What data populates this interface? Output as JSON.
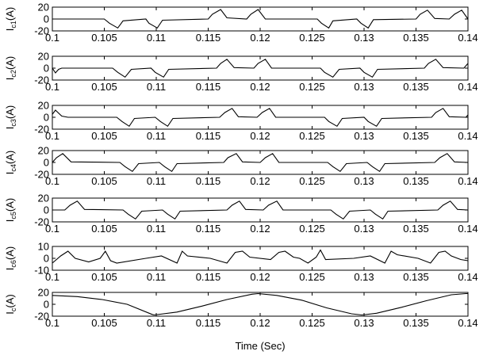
{
  "chart_data": [
    {
      "type": "line",
      "ylabel": {
        "main": "I",
        "sub": "c1",
        "unit": "(A)"
      },
      "ylim": [
        -20,
        20
      ],
      "yticks": [
        "20",
        "0",
        "-20"
      ],
      "xlim": [
        0.1,
        0.14
      ],
      "xticks": [
        "0.1",
        "0.105",
        "0.11",
        "0.115",
        "0.12",
        "0.125",
        "0.13",
        "0.135",
        "0.14"
      ],
      "x": [
        0.1,
        0.105,
        0.1055,
        0.1063,
        0.1068,
        0.109,
        0.1093,
        0.1101,
        0.1106,
        0.115,
        0.1154,
        0.1162,
        0.1168,
        0.1187,
        0.1191,
        0.1198,
        0.1205,
        0.1255,
        0.1259,
        0.1266,
        0.127,
        0.1293,
        0.1297,
        0.1304,
        0.1309,
        0.135,
        0.1354,
        0.1361,
        0.1368,
        0.1382,
        0.1387,
        0.1394,
        0.14
      ],
      "values": [
        0,
        0,
        -7,
        -15,
        -3,
        0,
        -7,
        -15,
        -2,
        0,
        8,
        16,
        2,
        0,
        8,
        16,
        0,
        0,
        -7,
        -15,
        -3,
        0,
        -7,
        -15,
        -1,
        0,
        8,
        15,
        1,
        0,
        8,
        15,
        0
      ]
    },
    {
      "type": "line",
      "ylabel": {
        "main": "I",
        "sub": "c2",
        "unit": "(A)"
      },
      "ylim": [
        -20,
        20
      ],
      "yticks": [
        "20",
        "0",
        "-20"
      ],
      "xlim": [
        0.1,
        0.14
      ],
      "xticks": [
        "0.1",
        "0.105",
        "0.11",
        "0.115",
        "0.12",
        "0.125",
        "0.13",
        "0.135",
        "0.14"
      ],
      "x": [
        0.1,
        0.1003,
        0.1006,
        0.1009,
        0.1058,
        0.1063,
        0.107,
        0.1076,
        0.1095,
        0.1099,
        0.1107,
        0.1112,
        0.1158,
        0.1162,
        0.1168,
        0.1175,
        0.1194,
        0.1198,
        0.1205,
        0.1211,
        0.1258,
        0.1262,
        0.127,
        0.1276,
        0.1296,
        0.13,
        0.1308,
        0.1313,
        0.1358,
        0.1362,
        0.1369,
        0.1376,
        0.1396,
        0.14
      ],
      "values": [
        0,
        -8,
        -2,
        0,
        0,
        -7,
        -15,
        -2,
        0,
        -7,
        -15,
        -2,
        0,
        8,
        15,
        1,
        0,
        8,
        15,
        0,
        0,
        -7,
        -15,
        -2,
        0,
        -7,
        -15,
        -2,
        0,
        8,
        15,
        1,
        0,
        8
      ]
    },
    {
      "type": "line",
      "ylabel": {
        "main": "I",
        "sub": "c3",
        "unit": "(A)"
      },
      "ylim": [
        -20,
        20
      ],
      "yticks": [
        "20",
        "0",
        "-20"
      ],
      "xlim": [
        0.1,
        0.14
      ],
      "xticks": [
        "0.1",
        "0.105",
        "0.11",
        "0.115",
        "0.12",
        "0.125",
        "0.13",
        "0.135",
        "0.14"
      ],
      "x": [
        0.1,
        0.1003,
        0.1009,
        0.1015,
        0.1062,
        0.1067,
        0.1074,
        0.1079,
        0.1099,
        0.1104,
        0.1111,
        0.1116,
        0.1161,
        0.1166,
        0.1173,
        0.1179,
        0.1197,
        0.1202,
        0.1209,
        0.1215,
        0.1262,
        0.1266,
        0.1274,
        0.1279,
        0.13,
        0.1304,
        0.1312,
        0.1317,
        0.1365,
        0.1369,
        0.1376,
        0.1382,
        0.1398,
        0.14
      ],
      "values": [
        5,
        12,
        2,
        0,
        0,
        -7,
        -15,
        -2,
        0,
        -7,
        -15,
        -2,
        0,
        8,
        15,
        1,
        0,
        8,
        15,
        0,
        0,
        -7,
        -15,
        -2,
        0,
        -7,
        -15,
        -2,
        0,
        8,
        15,
        1,
        0,
        4
      ]
    },
    {
      "type": "line",
      "ylabel": {
        "main": "I",
        "sub": "c4",
        "unit": "(A)"
      },
      "ylim": [
        -20,
        20
      ],
      "yticks": [
        "20",
        "0",
        "-20"
      ],
      "xlim": [
        0.1,
        0.14
      ],
      "xticks": [
        "0.1",
        "0.105",
        "0.11",
        "0.115",
        "0.12",
        "0.125",
        "0.13",
        "0.135",
        "0.14"
      ],
      "x": [
        0.1,
        0.1004,
        0.101,
        0.1018,
        0.1065,
        0.107,
        0.1077,
        0.1083,
        0.1103,
        0.1108,
        0.1115,
        0.112,
        0.1165,
        0.1169,
        0.1177,
        0.1183,
        0.12,
        0.1205,
        0.1212,
        0.1218,
        0.1265,
        0.127,
        0.1277,
        0.1283,
        0.1303,
        0.1308,
        0.1315,
        0.132,
        0.1368,
        0.1373,
        0.138,
        0.1387,
        0.14
      ],
      "values": [
        0,
        8,
        15,
        1,
        0,
        -7,
        -15,
        -2,
        0,
        -7,
        -15,
        -2,
        0,
        8,
        15,
        1,
        0,
        8,
        15,
        0,
        0,
        -7,
        -15,
        -2,
        0,
        -7,
        -15,
        -2,
        0,
        8,
        15,
        1,
        0
      ]
    },
    {
      "type": "line",
      "ylabel": {
        "main": "I",
        "sub": "c5",
        "unit": "(A)"
      },
      "ylim": [
        -20,
        20
      ],
      "yticks": [
        "20",
        "0",
        "-20"
      ],
      "xlim": [
        0.1,
        0.14
      ],
      "xticks": [
        "0.1",
        "0.105",
        "0.11",
        "0.115",
        "0.12",
        "0.125",
        "0.13",
        "0.135",
        "0.14"
      ],
      "x": [
        0.1,
        0.1012,
        0.1017,
        0.1024,
        0.1031,
        0.1068,
        0.1073,
        0.108,
        0.1086,
        0.1106,
        0.1111,
        0.1118,
        0.1123,
        0.1168,
        0.1173,
        0.118,
        0.1186,
        0.1203,
        0.1208,
        0.1216,
        0.1222,
        0.1268,
        0.1273,
        0.128,
        0.1286,
        0.1306,
        0.1311,
        0.1318,
        0.1323,
        0.1371,
        0.1376,
        0.1383,
        0.139,
        0.14
      ],
      "values": [
        0,
        0,
        8,
        15,
        1,
        0,
        -7,
        -15,
        -2,
        0,
        -7,
        -15,
        -2,
        0,
        8,
        15,
        1,
        0,
        8,
        15,
        0,
        0,
        -7,
        -15,
        -2,
        0,
        -7,
        -15,
        -2,
        0,
        8,
        15,
        1,
        0
      ]
    },
    {
      "type": "line",
      "ylabel": {
        "main": "I",
        "sub": "c6",
        "unit": "(A)"
      },
      "ylim": [
        -10,
        10
      ],
      "yticks": [
        "10",
        "0",
        "-10"
      ],
      "xlim": [
        0.1,
        0.14
      ],
      "xticks": [
        "0.1",
        "0.105",
        "0.11",
        "0.115",
        "0.12",
        "0.125",
        "0.13",
        "0.135",
        "0.14"
      ],
      "x": [
        0.1,
        0.1008,
        0.1015,
        0.1022,
        0.1035,
        0.1046,
        0.1051,
        0.1056,
        0.1062,
        0.109,
        0.1105,
        0.112,
        0.1125,
        0.113,
        0.1152,
        0.1168,
        0.1176,
        0.1183,
        0.119,
        0.121,
        0.1218,
        0.1224,
        0.1232,
        0.1238,
        0.1246,
        0.1254,
        0.1258,
        0.1263,
        0.129,
        0.1306,
        0.132,
        0.1326,
        0.1332,
        0.1352,
        0.1364,
        0.1372,
        0.1378,
        0.1384,
        0.1393,
        0.14
      ],
      "values": [
        -4,
        2,
        6,
        0,
        -3,
        0,
        6,
        -2,
        -4,
        0,
        2,
        -4,
        6,
        2,
        0,
        -4,
        5,
        6,
        1,
        -1,
        5,
        6,
        1,
        0,
        -4,
        1,
        7,
        -1,
        0,
        2,
        -4,
        6,
        3,
        0,
        -4,
        5,
        6,
        2,
        -1,
        -2
      ]
    },
    {
      "type": "line",
      "ylabel": {
        "main": "I",
        "sub": "c",
        "unit": "(A)"
      },
      "xlabel": "Time (Sec)",
      "ylim": [
        -20,
        20
      ],
      "yticks": [
        "20",
        "0",
        "-20"
      ],
      "xlim": [
        0.1,
        0.14
      ],
      "xticks": [
        "0.1",
        "0.105",
        "0.11",
        "0.115",
        "0.12",
        "0.125",
        "0.13",
        "0.135",
        "0.14"
      ],
      "x": [
        0.1,
        0.1024,
        0.1048,
        0.1072,
        0.1096,
        0.1098,
        0.112,
        0.1144,
        0.1168,
        0.1192,
        0.1198,
        0.1216,
        0.124,
        0.1264,
        0.1288,
        0.1298,
        0.1312,
        0.1336,
        0.136,
        0.1384,
        0.1398,
        0.14
      ],
      "values": [
        15,
        13,
        8,
        0,
        -17,
        -18,
        -13,
        -3,
        8,
        17,
        18,
        15,
        7,
        -6,
        -16,
        -18,
        -15,
        -5,
        6,
        16,
        18,
        18
      ]
    }
  ]
}
